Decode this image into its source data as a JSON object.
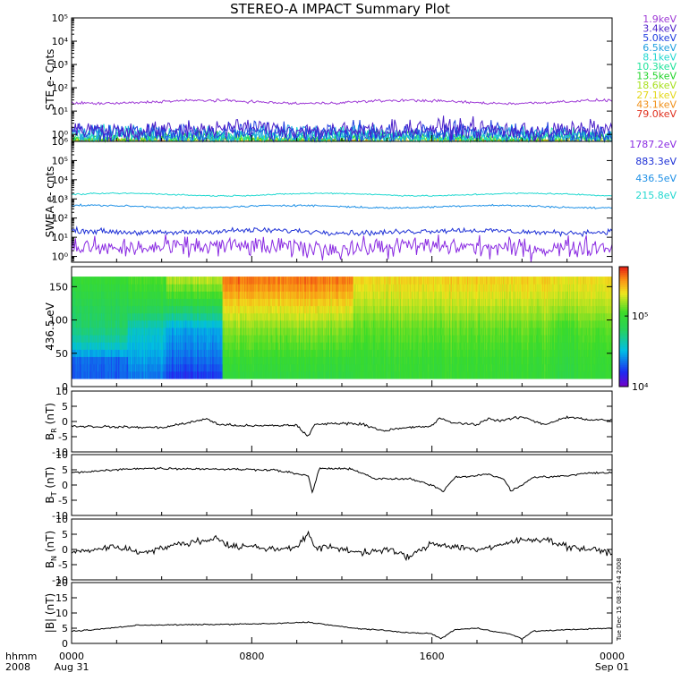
{
  "title": "STEREO-A IMPACT Summary Plot",
  "timestamp": "Tue Dec 15 08:32:44 2008",
  "time_axis": {
    "corner_label": [
      "hhmm",
      "2008"
    ],
    "ticks": [
      {
        "hour": 0,
        "lines": [
          "0000",
          "Aug 31"
        ]
      },
      {
        "hour": 8,
        "lines": [
          "0800",
          ""
        ]
      },
      {
        "hour": 16,
        "lines": [
          "1600",
          ""
        ]
      },
      {
        "hour": 24,
        "lines": [
          "0000",
          "Sep 01"
        ]
      }
    ]
  },
  "chart_data": [
    {
      "id": "ste",
      "type": "line",
      "ylabel": "STE e- Cnts",
      "yscale": "log",
      "ylim": [
        0.5,
        100000
      ],
      "yticks": [
        1,
        10,
        100,
        1000,
        10000,
        100000
      ],
      "x_unit": "hours since 2008-08-31 00:00 UT",
      "xlim": [
        0,
        24
      ],
      "series": [
        {
          "name": "1.9keV",
          "color": "#9e3ad6",
          "level": 25,
          "noise": 0.05
        },
        {
          "name": "3.4keV",
          "color": "#4b1fc9",
          "level": 1.6,
          "noise": 0.35
        },
        {
          "name": "5.0keV",
          "color": "#1f3ee0",
          "level": 1.2,
          "noise": 0.4
        },
        {
          "name": "6.5keV",
          "color": "#1fa0e0",
          "level": 1.0,
          "noise": 0.35
        },
        {
          "name": "8.1keV",
          "color": "#22d8d0",
          "level": 0.9,
          "noise": 0.3
        },
        {
          "name": "10.3keV",
          "color": "#1ee39a",
          "level": 0.8,
          "noise": 0.25
        },
        {
          "name": "13.5keV",
          "color": "#22d42a",
          "level": 0.7,
          "noise": 0.2
        },
        {
          "name": "18.6keV",
          "color": "#a8e01e",
          "level": 0.6,
          "noise": 0.15
        },
        {
          "name": "27.1keV",
          "color": "#e4d81c",
          "level": 0.55,
          "noise": 0.1
        },
        {
          "name": "43.1keV",
          "color": "#f09018",
          "level": 0.52,
          "noise": 0.05
        },
        {
          "name": "79.0keV",
          "color": "#e0301e",
          "level": 0.51,
          "noise": 0.03
        }
      ]
    },
    {
      "id": "swea",
      "type": "line",
      "ylabel": "SWEA e- cnts",
      "yscale": "log",
      "ylim": [
        0.5,
        1000000
      ],
      "yticks": [
        1,
        10,
        100,
        1000,
        10000,
        100000,
        1000000
      ],
      "x_unit": "hours since 2008-08-31 00:00 UT",
      "xlim": [
        0,
        24
      ],
      "series": [
        {
          "name": "1787.2eV",
          "color": "#8a2be2",
          "level": 3,
          "noise": 0.45
        },
        {
          "name": "883.3eV",
          "color": "#1c2fd6",
          "level": 20,
          "noise": 0.12
        },
        {
          "name": "436.5eV",
          "color": "#1e90e6",
          "level": 400,
          "noise": 0.04
        },
        {
          "name": "215.8eV",
          "color": "#22d8d0",
          "level": 1700,
          "noise": 0.03
        }
      ]
    },
    {
      "id": "pad",
      "type": "heatmap",
      "ylabel": "436.5 eV",
      "ylim": [
        0,
        180
      ],
      "yticks": [
        0,
        50,
        100,
        150
      ],
      "x_unit": "hours since 2008-08-31 00:00 UT",
      "xlim": [
        0,
        24
      ],
      "colorbar": {
        "scale": "log",
        "range": [
          10000,
          500000
        ],
        "ticks": [
          {
            "value": 10000,
            "label": "10^4"
          },
          {
            "value": 100000,
            "label": "10^5"
          }
        ]
      },
      "columns": [
        {
          "x0": 0.0,
          "x1": 2.5,
          "profile": [
            [
              0,
              20000
            ],
            [
              40,
              22000
            ],
            [
              90,
              60000
            ],
            [
              120,
              70000
            ],
            [
              165,
              100000
            ]
          ]
        },
        {
          "x0": 2.5,
          "x1": 4.2,
          "profile": [
            [
              0,
              20000
            ],
            [
              40,
              28000
            ],
            [
              90,
              40000
            ],
            [
              120,
              75000
            ],
            [
              165,
              120000
            ]
          ]
        },
        {
          "x0": 4.2,
          "x1": 6.7,
          "profile": [
            [
              0,
              14000
            ],
            [
              40,
              22000
            ],
            [
              90,
              30000
            ],
            [
              120,
              70000
            ],
            [
              165,
              180000
            ]
          ]
        },
        {
          "x0": 6.7,
          "x1": 12.5,
          "profile": [
            [
              0,
              80000
            ],
            [
              40,
              100000
            ],
            [
              90,
              150000
            ],
            [
              120,
              220000
            ],
            [
              165,
              380000
            ]
          ]
        },
        {
          "x0": 12.5,
          "x1": 21.5,
          "profile": [
            [
              0,
              95000
            ],
            [
              40,
              100000
            ],
            [
              90,
              130000
            ],
            [
              120,
              170000
            ],
            [
              165,
              240000
            ]
          ]
        },
        {
          "x0": 21.5,
          "x1": 22.3,
          "profile": [
            [
              0,
              80000
            ],
            [
              40,
              90000
            ],
            [
              90,
              110000
            ],
            [
              120,
              160000
            ],
            [
              165,
              220000
            ]
          ]
        },
        {
          "x0": 22.3,
          "x1": 24.0,
          "profile": [
            [
              0,
              95000
            ],
            [
              40,
              100000
            ],
            [
              90,
              125000
            ],
            [
              120,
              170000
            ],
            [
              165,
              230000
            ]
          ]
        }
      ]
    },
    {
      "id": "br",
      "type": "line",
      "ylabel": "B_R (nT)",
      "ylim": [
        -10,
        10
      ],
      "yticks": [
        -10,
        -5,
        0,
        5,
        10
      ],
      "x_unit": "hours since 2008-08-31 00:00 UT",
      "xlim": [
        0,
        24
      ],
      "series": [
        {
          "color": "#000000",
          "noise": 0.35,
          "points": [
            [
              0,
              -1.5
            ],
            [
              2,
              -1.8
            ],
            [
              4,
              -2
            ],
            [
              5.5,
              0
            ],
            [
              6,
              1
            ],
            [
              6.5,
              -1
            ],
            [
              8,
              -1.5
            ],
            [
              10,
              -1.2
            ],
            [
              10.5,
              -5
            ],
            [
              10.8,
              -1
            ],
            [
              12,
              -0.5
            ],
            [
              13,
              -1
            ],
            [
              13.8,
              -3
            ],
            [
              15,
              -2
            ],
            [
              16,
              -1.5
            ],
            [
              16.3,
              1
            ],
            [
              17,
              -0.5
            ],
            [
              18,
              -1
            ],
            [
              18.5,
              1
            ],
            [
              19,
              0.2
            ],
            [
              20,
              1.5
            ],
            [
              21,
              -1
            ],
            [
              22,
              1.5
            ],
            [
              23,
              0.5
            ],
            [
              24,
              0.5
            ]
          ]
        }
      ]
    },
    {
      "id": "bt",
      "type": "line",
      "ylabel": "B_T (nT)",
      "ylim": [
        -10,
        10
      ],
      "yticks": [
        -10,
        -5,
        0,
        5,
        10
      ],
      "x_unit": "hours since 2008-08-31 00:00 UT",
      "xlim": [
        0,
        24
      ],
      "series": [
        {
          "color": "#000000",
          "noise": 0.3,
          "points": [
            [
              0,
              4
            ],
            [
              1,
              4.5
            ],
            [
              3,
              5.5
            ],
            [
              6,
              5.3
            ],
            [
              9,
              5
            ],
            [
              10.5,
              3
            ],
            [
              10.7,
              -2.5
            ],
            [
              11,
              5.5
            ],
            [
              12.5,
              5.2
            ],
            [
              13.5,
              2
            ],
            [
              15,
              2
            ],
            [
              16,
              0
            ],
            [
              16.5,
              -2
            ],
            [
              17,
              2.5
            ],
            [
              18.5,
              3.5
            ],
            [
              19.2,
              2
            ],
            [
              19.5,
              -2
            ],
            [
              20,
              0
            ],
            [
              20.5,
              2.5
            ],
            [
              22,
              3
            ],
            [
              23,
              4
            ],
            [
              24,
              4
            ]
          ]
        }
      ]
    },
    {
      "id": "bn",
      "type": "line",
      "ylabel": "B_N (nT)",
      "ylim": [
        -10,
        10
      ],
      "yticks": [
        -10,
        -5,
        0,
        5,
        10
      ],
      "x_unit": "hours since 2008-08-31 00:00 UT",
      "xlim": [
        0,
        24
      ],
      "series": [
        {
          "color": "#000000",
          "noise": 0.9,
          "points": [
            [
              0,
              -1
            ],
            [
              1,
              0
            ],
            [
              2,
              1
            ],
            [
              3,
              -1
            ],
            [
              4,
              0.5
            ],
            [
              5,
              2
            ],
            [
              6,
              3
            ],
            [
              6.5,
              4
            ],
            [
              7,
              1
            ],
            [
              8,
              1
            ],
            [
              9,
              0
            ],
            [
              10,
              1
            ],
            [
              10.5,
              5
            ],
            [
              10.9,
              0
            ],
            [
              11.5,
              1
            ],
            [
              12,
              0
            ],
            [
              13,
              -1
            ],
            [
              14,
              0
            ],
            [
              15,
              -2.5
            ],
            [
              16,
              2
            ],
            [
              17,
              1
            ],
            [
              18,
              0
            ],
            [
              19,
              1
            ],
            [
              19.5,
              2.5
            ],
            [
              20,
              3
            ],
            [
              21,
              3.5
            ],
            [
              22,
              1
            ],
            [
              23,
              0
            ],
            [
              24,
              -1
            ]
          ]
        }
      ]
    },
    {
      "id": "bmag",
      "type": "line",
      "ylabel": "|B| (nT)",
      "ylim": [
        0,
        20
      ],
      "yticks": [
        0,
        5,
        10,
        15,
        20
      ],
      "x_unit": "hours since 2008-08-31 00:00 UT",
      "xlim": [
        0,
        24
      ],
      "series": [
        {
          "color": "#000000",
          "noise": 0.15,
          "points": [
            [
              0,
              4
            ],
            [
              1,
              4.5
            ],
            [
              3,
              6
            ],
            [
              6,
              6.2
            ],
            [
              9,
              6.5
            ],
            [
              10.5,
              7
            ],
            [
              11,
              6.5
            ],
            [
              12.5,
              5
            ],
            [
              13.5,
              4.5
            ],
            [
              15,
              3.5
            ],
            [
              16,
              3.2
            ],
            [
              16.4,
              1.5
            ],
            [
              17,
              4.5
            ],
            [
              18,
              5
            ],
            [
              19.5,
              3
            ],
            [
              20,
              1.5
            ],
            [
              20.5,
              4
            ],
            [
              22,
              4.5
            ],
            [
              24,
              5
            ]
          ]
        }
      ]
    }
  ]
}
